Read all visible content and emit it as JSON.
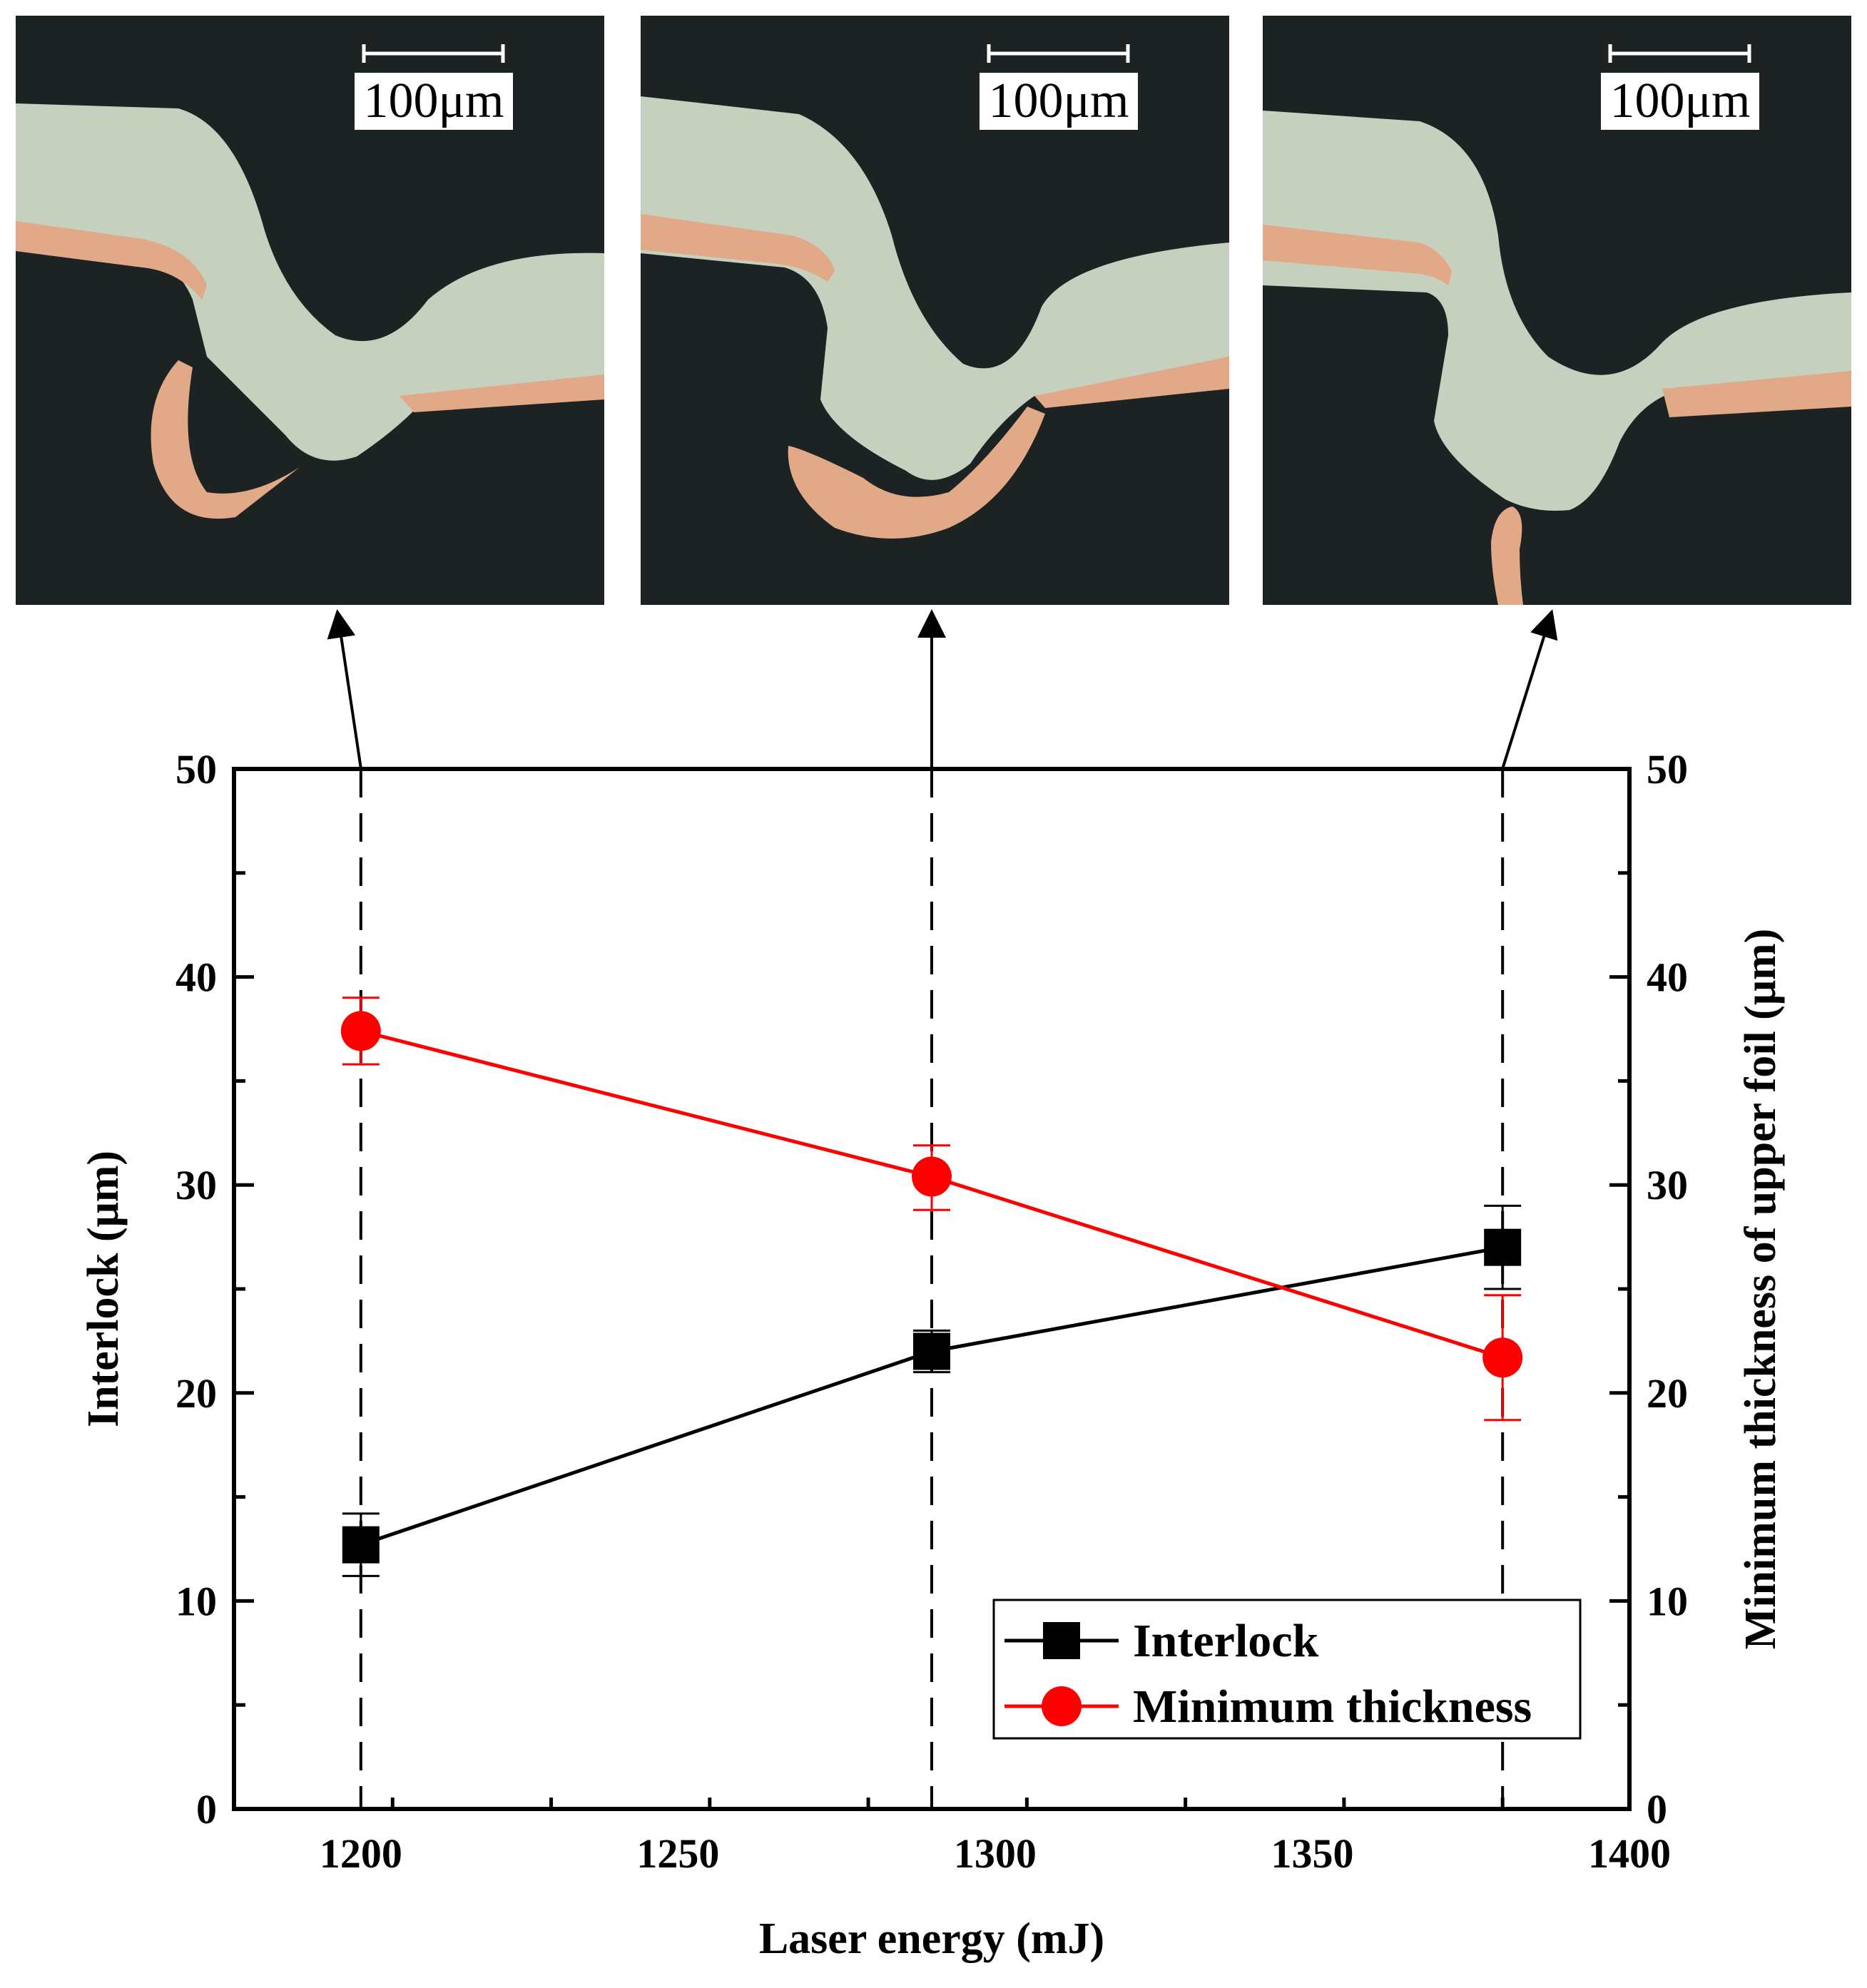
{
  "chart_data": {
    "type": "line",
    "title": "",
    "xlabel": "Laser energy (mJ)",
    "ylabel_left": "Interlock (μm)",
    "ylabel_right": "Minimum thickness of upper foil (μm)",
    "xlim": [
      1180,
      1400
    ],
    "ylim": [
      0,
      50
    ],
    "xticks": [
      1200,
      1250,
      1300,
      1350,
      1400
    ],
    "yticks": [
      0,
      10,
      20,
      30,
      40,
      50
    ],
    "grid": false,
    "legend_position": "bottom-right",
    "x": [
      1200,
      1290,
      1380
    ],
    "series": [
      {
        "name": "Interlock",
        "values": [
          12.7,
          22.0,
          27.0
        ],
        "err_low": [
          11.2,
          21.0,
          25.0
        ],
        "err_high": [
          14.2,
          23.0,
          29.0
        ],
        "color": "#000000",
        "marker": "square",
        "axis": "left"
      },
      {
        "name": "Minimum thickness",
        "values": [
          37.4,
          30.4,
          21.7
        ],
        "err_low": [
          35.8,
          28.8,
          18.7
        ],
        "err_high": [
          39.0,
          31.9,
          24.7
        ],
        "color": "#ff0000",
        "marker": "circle",
        "axis": "right"
      }
    ],
    "micrographs": [
      {
        "x": 1200,
        "scale_bar_label": "100μm"
      },
      {
        "x": 1290,
        "scale_bar_label": "100μm"
      },
      {
        "x": 1380,
        "scale_bar_label": "100μm"
      }
    ]
  },
  "colors": {
    "background": "#ffffff",
    "micrograph_background": "#1d2322",
    "aluminum_foil": "#c6d0bf",
    "copper_foil": "#e2a988",
    "interlock_series": "#000000",
    "thickness_series": "#ff0000"
  }
}
